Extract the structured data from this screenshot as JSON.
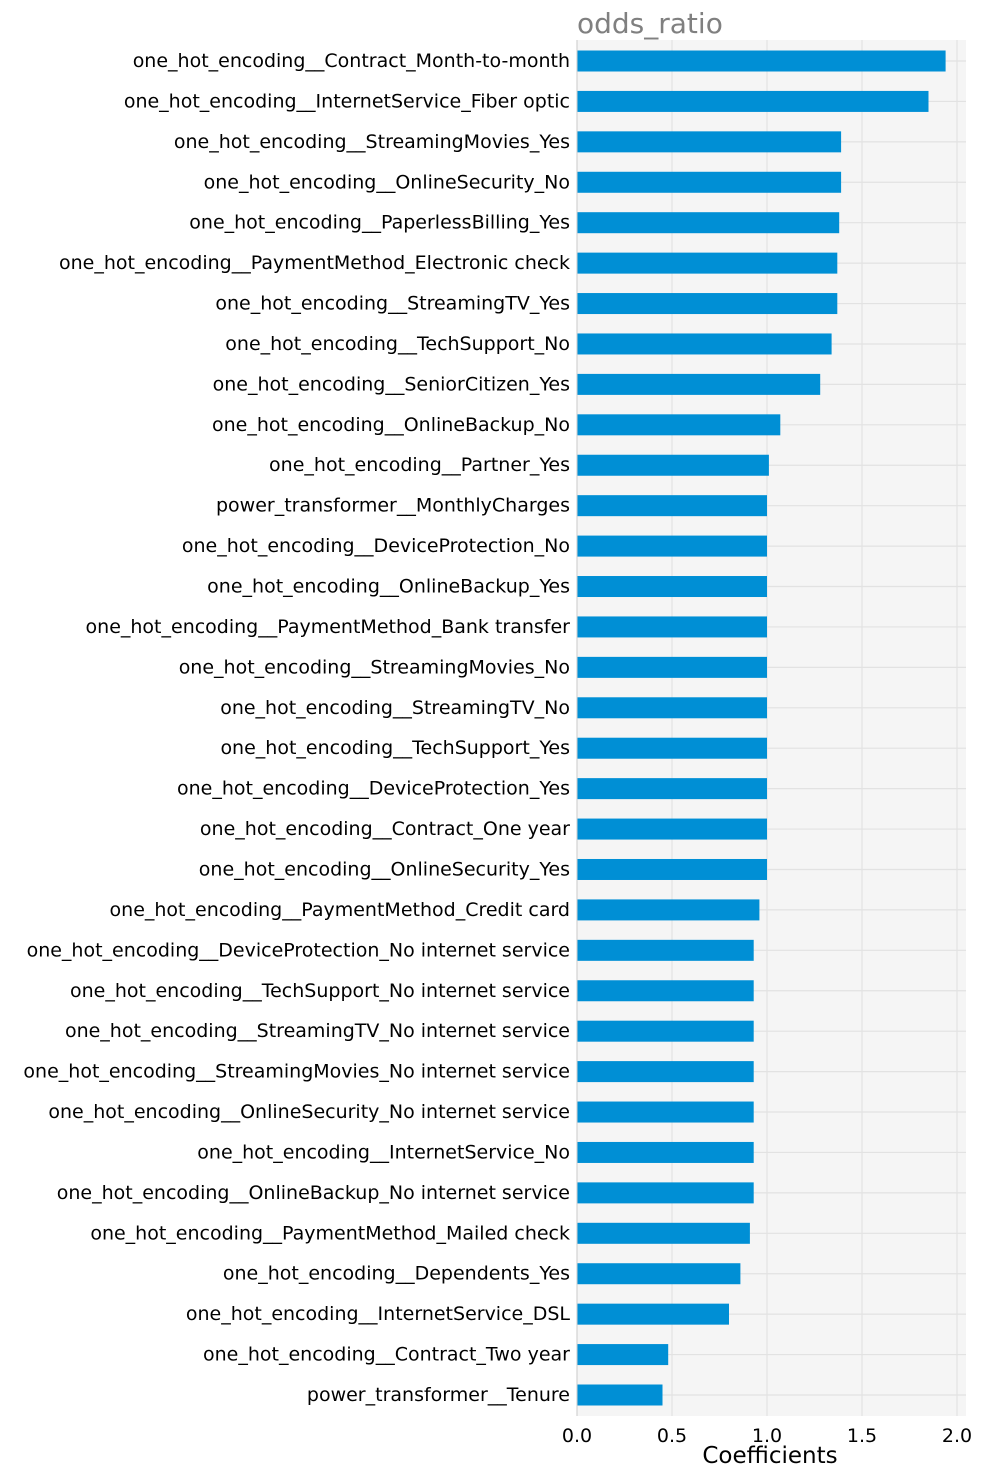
{
  "chart_data": {
    "type": "bar",
    "orientation": "horizontal",
    "title": "odds_ratio",
    "xlabel": "Coefficients",
    "ylabel": "",
    "xlim": [
      0,
      2.03
    ],
    "xticks": [
      "0.0",
      "0.5",
      "1.0",
      "1.5",
      "2.0"
    ],
    "grid": true,
    "legend": "none",
    "colors": {
      "bar": "#008fd5",
      "plot_background": "#f5f5f5",
      "grid": "#e2e2e2",
      "title": "#808080",
      "text": "#000000"
    },
    "categories": [
      "one_hot_encoding__Contract_Month-to-month",
      "one_hot_encoding__InternetService_Fiber optic",
      "one_hot_encoding__StreamingMovies_Yes",
      "one_hot_encoding__OnlineSecurity_No",
      "one_hot_encoding__PaperlessBilling_Yes",
      "one_hot_encoding__PaymentMethod_Electronic check",
      "one_hot_encoding__StreamingTV_Yes",
      "one_hot_encoding__TechSupport_No",
      "one_hot_encoding__SeniorCitizen_Yes",
      "one_hot_encoding__OnlineBackup_No",
      "one_hot_encoding__Partner_Yes",
      "power_transformer__MonthlyCharges",
      "one_hot_encoding__DeviceProtection_No",
      "one_hot_encoding__OnlineBackup_Yes",
      "one_hot_encoding__PaymentMethod_Bank transfer",
      "one_hot_encoding__StreamingMovies_No",
      "one_hot_encoding__StreamingTV_No",
      "one_hot_encoding__TechSupport_Yes",
      "one_hot_encoding__DeviceProtection_Yes",
      "one_hot_encoding__Contract_One year",
      "one_hot_encoding__OnlineSecurity_Yes",
      "one_hot_encoding__PaymentMethod_Credit card",
      "one_hot_encoding__DeviceProtection_No internet service",
      "one_hot_encoding__TechSupport_No internet service",
      "one_hot_encoding__StreamingTV_No internet service",
      "one_hot_encoding__StreamingMovies_No internet service",
      "one_hot_encoding__OnlineSecurity_No internet service",
      "one_hot_encoding__InternetService_No",
      "one_hot_encoding__OnlineBackup_No internet service",
      "one_hot_encoding__PaymentMethod_Mailed check",
      "one_hot_encoding__Dependents_Yes",
      "one_hot_encoding__InternetService_DSL",
      "one_hot_encoding__Contract_Two year",
      "power_transformer__Tenure"
    ],
    "values": [
      1.94,
      1.85,
      1.39,
      1.39,
      1.38,
      1.37,
      1.37,
      1.34,
      1.28,
      1.07,
      1.01,
      1.0,
      1.0,
      1.0,
      1.0,
      1.0,
      1.0,
      1.0,
      1.0,
      1.0,
      1.0,
      0.96,
      0.93,
      0.93,
      0.93,
      0.93,
      0.93,
      0.93,
      0.93,
      0.91,
      0.86,
      0.8,
      0.48,
      0.45
    ]
  }
}
